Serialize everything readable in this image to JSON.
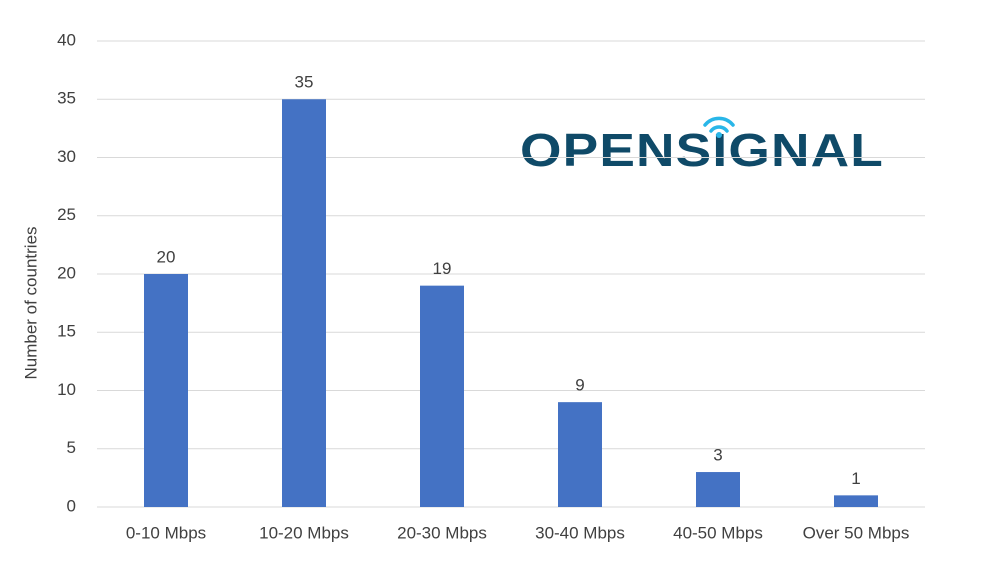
{
  "chart_data": {
    "type": "bar",
    "logo": "OPENSIGNAL",
    "y_label": "Number of countries",
    "categories": [
      "0-10 Mbps",
      "10-20 Mbps",
      "20-30 Mbps",
      "30-40 Mbps",
      "40-50 Mbps",
      "Over 50 Mbps"
    ],
    "values": [
      20,
      35,
      19,
      9,
      3,
      1
    ],
    "color": "#4472c4",
    "ylim": [
      0,
      40
    ],
    "yticks": [
      0,
      5,
      10,
      15,
      20,
      25,
      30,
      35,
      40
    ],
    "grid": true
  }
}
